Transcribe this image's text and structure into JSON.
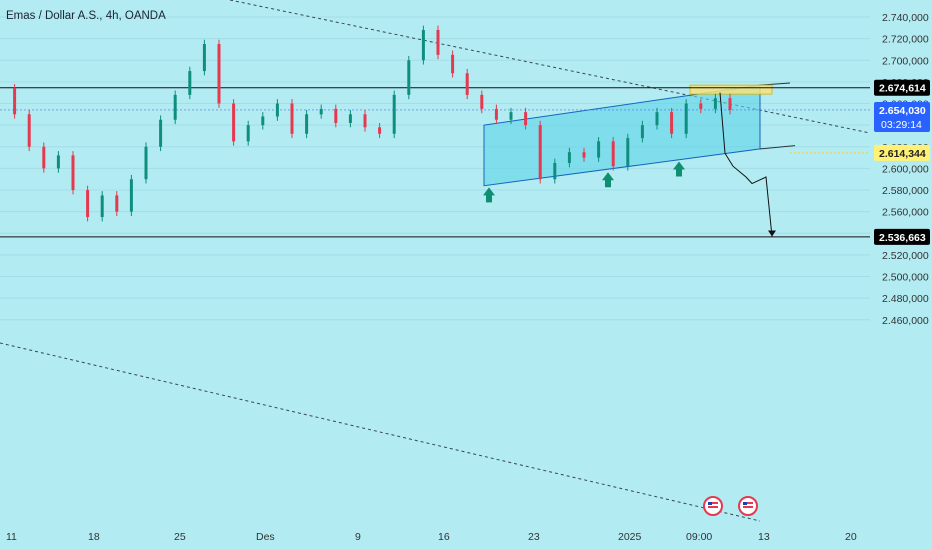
{
  "header": {
    "symbol_title": "Emas / Dollar A.S., 4h, OANDA"
  },
  "colors": {
    "background": "#b2ebf2",
    "up_candle": "#0e8f7e",
    "down_candle": "#e53950",
    "channel_fill": "#5fd3e6",
    "arrow_green": "#0f8f72",
    "highlight_zone": "#f6e27a",
    "current_price_badge": "#2962ff",
    "support_badge": "#fff176"
  },
  "price_scale": {
    "labels": [
      "2.740,000",
      "2.720,000",
      "2.700,000",
      "2.680,000",
      "2.660,000",
      "2.640,000",
      "2.620,000",
      "2.600,000",
      "2.580,000",
      "2.560,000",
      "2.540,000",
      "2.520,000",
      "2.500,000",
      "2.480,000",
      "2.460,000"
    ]
  },
  "time_scale": {
    "labels": [
      "11",
      "18",
      "25",
      "Des",
      "9",
      "16",
      "23",
      "2025",
      "09:00",
      "13",
      "20"
    ]
  },
  "price_badges": {
    "resistance": "2.674,614",
    "current_price": "2.654,030",
    "countdown": "03:29:14",
    "support_line": "2.614,344",
    "target": "2.536,663"
  },
  "event_icons": [
    "us-flag-event-icon",
    "us-flag-event-icon"
  ],
  "chart_data": {
    "type": "line",
    "instrument": "Emas / Dollar A.S.",
    "timeframe": "4h",
    "x_ticks": [
      "11",
      "18",
      "25",
      "Des",
      "9",
      "16",
      "23",
      "2025",
      "09:00",
      "13",
      "20"
    ],
    "ylim": [
      2450,
      2745
    ],
    "y_ticks": [
      2740,
      2720,
      2700,
      2680,
      2660,
      2640,
      2620,
      2600,
      2580,
      2560,
      2540,
      2520,
      2500,
      2480,
      2460
    ],
    "series": [
      {
        "values": [
          2674,
          2650,
          2620,
          2600,
          2612,
          2580,
          2555,
          2575,
          2560,
          2590,
          2620,
          2645,
          2668,
          2690,
          2715,
          2660,
          2625,
          2640,
          2648,
          2660,
          2632,
          2650,
          2655,
          2642,
          2650,
          2638,
          2632,
          2668,
          2700,
          2728,
          2705,
          2688,
          2668,
          2655,
          2645,
          2652,
          2640,
          2590,
          2605,
          2615,
          2610,
          2625,
          2602,
          2628,
          2640,
          2652,
          2632,
          2660,
          2655,
          2665,
          2654
        ],
        "color": "#0e8f7e"
      }
    ],
    "horizontal_levels": [
      2674.614,
      2536.663
    ],
    "current_price": 2654.03,
    "rising_channel": {
      "upper": [
        2640,
        2677
      ],
      "lower": [
        2584,
        2618
      ]
    },
    "annotations": [
      "2.674,614",
      "2.654,030",
      "2.614,344",
      "2.536,663"
    ]
  }
}
